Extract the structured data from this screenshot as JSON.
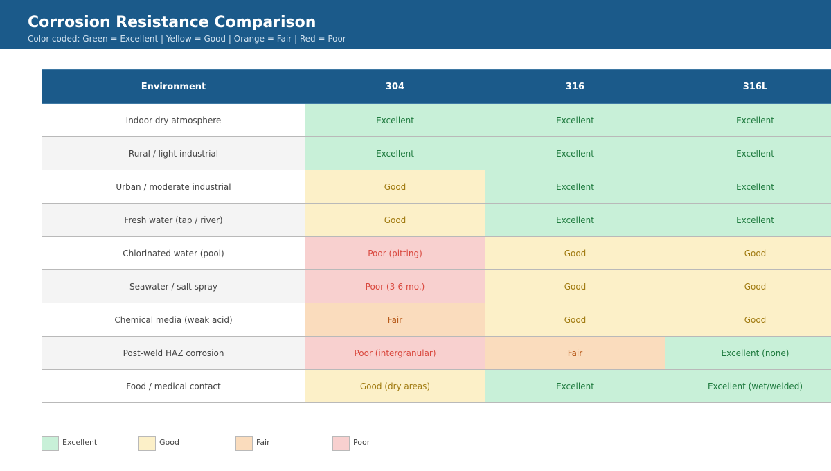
{
  "header": {
    "title": "Corrosion Resistance Comparison",
    "subtitle": "Color-coded: Green = Excellent | Yellow = Good | Orange = Fair | Red = Poor"
  },
  "colors": {
    "header_bg": "#1b5a8a",
    "excellent_bg": "#c8f0d8",
    "excellent_text": "#1e7a3e",
    "good_bg": "#fcf0c8",
    "good_text": "#a07a10",
    "fair_bg": "#fadcbd",
    "fair_text": "#b85a1a",
    "poor_bg": "#f8d0cf",
    "poor_text": "#d9483e"
  },
  "table": {
    "headers": [
      "Environment",
      "304",
      "316",
      "316L"
    ],
    "rows": [
      {
        "environment": "Indoor dry atmosphere",
        "cells": [
          {
            "text": "Excellent",
            "rating": "excellent"
          },
          {
            "text": "Excellent",
            "rating": "excellent"
          },
          {
            "text": "Excellent",
            "rating": "excellent"
          }
        ]
      },
      {
        "environment": "Rural / light industrial",
        "cells": [
          {
            "text": "Excellent",
            "rating": "excellent"
          },
          {
            "text": "Excellent",
            "rating": "excellent"
          },
          {
            "text": "Excellent",
            "rating": "excellent"
          }
        ]
      },
      {
        "environment": "Urban / moderate industrial",
        "cells": [
          {
            "text": "Good",
            "rating": "good"
          },
          {
            "text": "Excellent",
            "rating": "excellent"
          },
          {
            "text": "Excellent",
            "rating": "excellent"
          }
        ]
      },
      {
        "environment": "Fresh water (tap / river)",
        "cells": [
          {
            "text": "Good",
            "rating": "good"
          },
          {
            "text": "Excellent",
            "rating": "excellent"
          },
          {
            "text": "Excellent",
            "rating": "excellent"
          }
        ]
      },
      {
        "environment": "Chlorinated water (pool)",
        "cells": [
          {
            "text": "Poor (pitting)",
            "rating": "poor"
          },
          {
            "text": "Good",
            "rating": "good"
          },
          {
            "text": "Good",
            "rating": "good"
          }
        ]
      },
      {
        "environment": "Seawater / salt spray",
        "cells": [
          {
            "text": "Poor (3-6 mo.)",
            "rating": "poor"
          },
          {
            "text": "Good",
            "rating": "good"
          },
          {
            "text": "Good",
            "rating": "good"
          }
        ]
      },
      {
        "environment": "Chemical media (weak acid)",
        "cells": [
          {
            "text": "Fair",
            "rating": "fair"
          },
          {
            "text": "Good",
            "rating": "good"
          },
          {
            "text": "Good",
            "rating": "good"
          }
        ]
      },
      {
        "environment": "Post-weld HAZ corrosion",
        "cells": [
          {
            "text": "Poor (intergranular)",
            "rating": "poor"
          },
          {
            "text": "Fair",
            "rating": "fair"
          },
          {
            "text": "Excellent (none)",
            "rating": "excellent"
          }
        ]
      },
      {
        "environment": "Food / medical contact",
        "cells": [
          {
            "text": "Good (dry areas)",
            "rating": "good"
          },
          {
            "text": "Excellent",
            "rating": "excellent"
          },
          {
            "text": "Excellent (wet/welded)",
            "rating": "excellent"
          }
        ]
      }
    ]
  },
  "legend": [
    {
      "label": "Excellent",
      "rating": "excellent"
    },
    {
      "label": "Good",
      "rating": "good"
    },
    {
      "label": "Fair",
      "rating": "fair"
    },
    {
      "label": "Poor",
      "rating": "poor"
    }
  ]
}
